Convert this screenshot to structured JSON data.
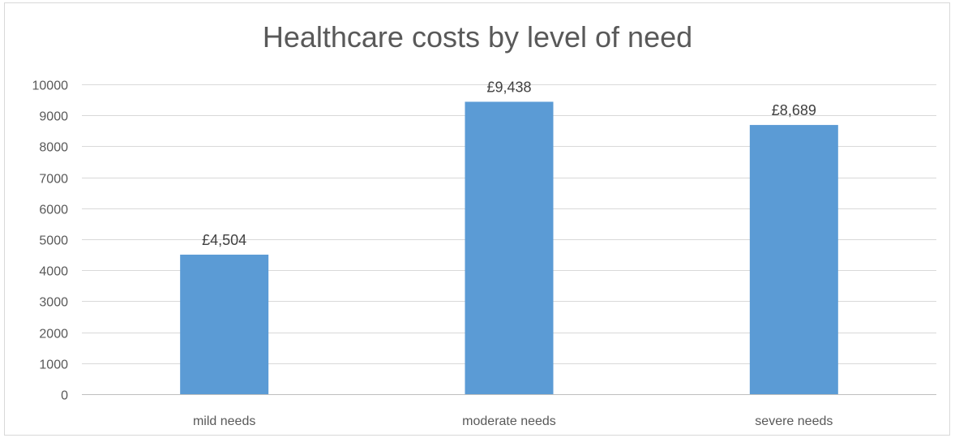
{
  "chart_data": {
    "type": "bar",
    "title": "Healthcare costs by level of need",
    "xlabel": "",
    "ylabel": "",
    "categories": [
      "mild needs",
      "moderate needs",
      "severe needs"
    ],
    "values": [
      4504,
      9438,
      8689
    ],
    "data_labels": [
      "£4,504",
      "£9,438",
      "£8,689"
    ],
    "y_ticks": [
      0,
      1000,
      2000,
      3000,
      4000,
      5000,
      6000,
      7000,
      8000,
      9000,
      10000
    ],
    "ylim": [
      0,
      10000
    ],
    "grid": true,
    "legend": "none",
    "colors": {
      "bar": "#5b9bd5",
      "grid": "#d9d9d9",
      "axis": "#bfbfbf",
      "text": "#595959"
    }
  }
}
